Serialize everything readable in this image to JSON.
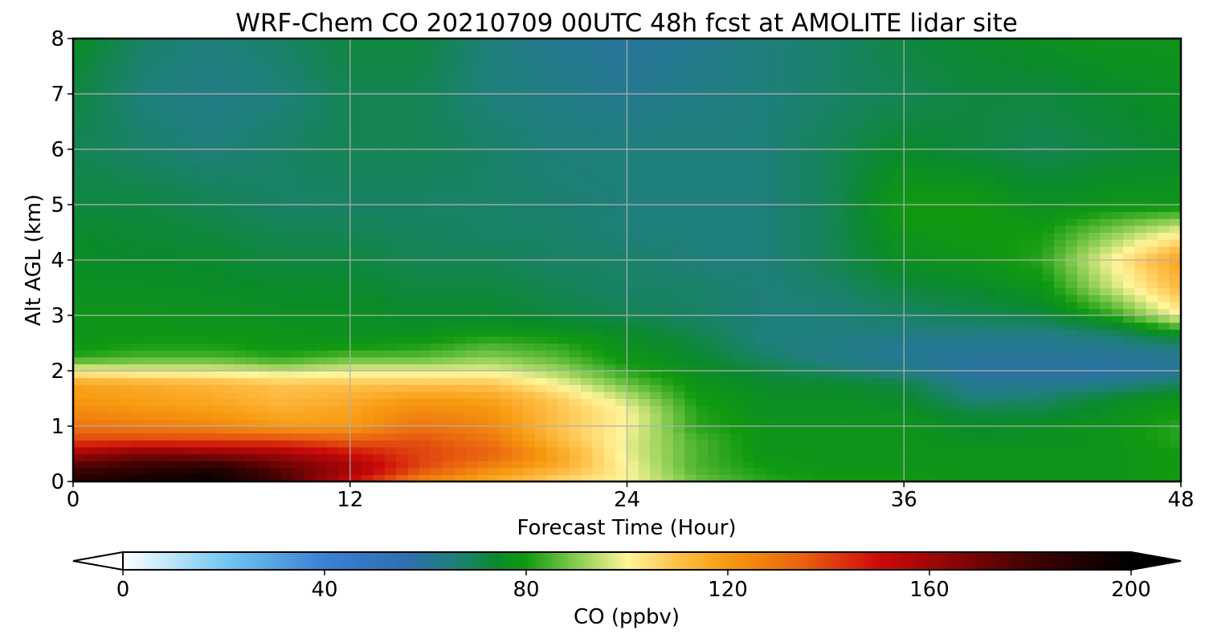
{
  "chart_data": {
    "type": "heatmap",
    "title": "WRF-Chem CO  20210709 00UTC 48h fcst at AMOLITE lidar site",
    "xlabel": "Forecast Time (Hour)",
    "ylabel": "Alt AGL (km)",
    "xlim": [
      0,
      48
    ],
    "ylim": [
      0,
      8
    ],
    "x_ticks": [
      "0",
      "12",
      "24",
      "36",
      "48"
    ],
    "y_ticks": [
      "0",
      "1",
      "2",
      "3",
      "4",
      "5",
      "6",
      "7",
      "8"
    ],
    "grid": true,
    "colorbar": {
      "label": "CO  (ppbv)",
      "range": [
        0,
        200
      ],
      "ticks": [
        "0",
        "40",
        "80",
        "120",
        "160",
        "200"
      ],
      "extend": "both",
      "colormap": [
        {
          "v": 0,
          "color": "#ffffff"
        },
        {
          "v": 20,
          "color": "#73c8f2"
        },
        {
          "v": 40,
          "color": "#3a80d4"
        },
        {
          "v": 56,
          "color": "#2e6fb0"
        },
        {
          "v": 66,
          "color": "#1f7f7a"
        },
        {
          "v": 74,
          "color": "#0a8a2c"
        },
        {
          "v": 80,
          "color": "#109a10"
        },
        {
          "v": 90,
          "color": "#88cc50"
        },
        {
          "v": 100,
          "color": "#fff59a"
        },
        {
          "v": 110,
          "color": "#ffc04a"
        },
        {
          "v": 120,
          "color": "#f79a10"
        },
        {
          "v": 135,
          "color": "#e86010"
        },
        {
          "v": 150,
          "color": "#cc0a0a"
        },
        {
          "v": 165,
          "color": "#8a0505"
        },
        {
          "v": 180,
          "color": "#420202"
        },
        {
          "v": 200,
          "color": "#000000"
        }
      ]
    },
    "x_hours": [
      0,
      3,
      6,
      9,
      12,
      15,
      18,
      21,
      24,
      27,
      30,
      33,
      36,
      39,
      42,
      45,
      48
    ],
    "z_km": [
      0,
      0.25,
      0.5,
      0.75,
      1.0,
      1.25,
      1.5,
      1.75,
      2.0,
      2.25,
      2.5,
      2.75,
      3.0,
      3.5,
      4.0,
      4.5,
      5.0,
      6.0,
      7.0,
      8.0
    ],
    "co_ppbv": [
      [
        190,
        195,
        198,
        180,
        150,
        125,
        115,
        105,
        100,
        88,
        82,
        80,
        80,
        78,
        78,
        78,
        80
      ],
      [
        180,
        185,
        190,
        175,
        160,
        140,
        125,
        115,
        100,
        85,
        80,
        78,
        78,
        78,
        78,
        78,
        80
      ],
      [
        160,
        168,
        165,
        160,
        150,
        140,
        135,
        118,
        98,
        85,
        78,
        78,
        78,
        78,
        78,
        78,
        80
      ],
      [
        140,
        140,
        140,
        140,
        135,
        138,
        130,
        112,
        98,
        85,
        78,
        78,
        78,
        76,
        76,
        78,
        82
      ],
      [
        130,
        128,
        125,
        120,
        120,
        130,
        125,
        110,
        100,
        82,
        78,
        78,
        78,
        74,
        76,
        78,
        82
      ],
      [
        125,
        122,
        120,
        116,
        118,
        125,
        122,
        110,
        100,
        82,
        76,
        76,
        76,
        72,
        72,
        76,
        80
      ],
      [
        120,
        118,
        116,
        112,
        115,
        120,
        118,
        108,
        95,
        80,
        76,
        76,
        74,
        66,
        68,
        74,
        78
      ],
      [
        118,
        116,
        113,
        110,
        110,
        110,
        110,
        100,
        88,
        78,
        74,
        74,
        72,
        62,
        62,
        64,
        70
      ],
      [
        100,
        98,
        98,
        95,
        98,
        98,
        98,
        92,
        82,
        76,
        72,
        68,
        64,
        58,
        58,
        58,
        60
      ],
      [
        82,
        85,
        85,
        82,
        86,
        86,
        90,
        86,
        78,
        74,
        68,
        64,
        62,
        60,
        60,
        60,
        62
      ],
      [
        78,
        80,
        80,
        78,
        78,
        80,
        84,
        82,
        76,
        72,
        66,
        64,
        62,
        62,
        62,
        64,
        68
      ],
      [
        78,
        78,
        78,
        78,
        76,
        76,
        78,
        76,
        74,
        70,
        66,
        66,
        66,
        66,
        66,
        70,
        82
      ],
      [
        78,
        78,
        77,
        76,
        76,
        74,
        74,
        72,
        70,
        68,
        66,
        66,
        68,
        70,
        72,
        82,
        100
      ],
      [
        76,
        76,
        75,
        74,
        74,
        72,
        72,
        70,
        68,
        68,
        66,
        68,
        72,
        74,
        78,
        95,
        112
      ],
      [
        75,
        74,
        74,
        72,
        72,
        70,
        70,
        68,
        68,
        66,
        66,
        70,
        76,
        78,
        82,
        100,
        118
      ],
      [
        74,
        73,
        72,
        70,
        70,
        69,
        68,
        68,
        66,
        66,
        66,
        70,
        78,
        80,
        80,
        90,
        100
      ],
      [
        72,
        72,
        70,
        68,
        68,
        68,
        68,
        67,
        66,
        66,
        66,
        70,
        80,
        80,
        76,
        78,
        78
      ],
      [
        70,
        68,
        66,
        68,
        70,
        70,
        68,
        66,
        66,
        66,
        66,
        70,
        74,
        72,
        70,
        72,
        74
      ],
      [
        72,
        66,
        64,
        66,
        70,
        70,
        66,
        64,
        62,
        64,
        66,
        68,
        70,
        72,
        72,
        74,
        76
      ],
      [
        75,
        68,
        66,
        68,
        72,
        72,
        66,
        62,
        60,
        62,
        66,
        68,
        72,
        74,
        76,
        78,
        78
      ]
    ]
  }
}
